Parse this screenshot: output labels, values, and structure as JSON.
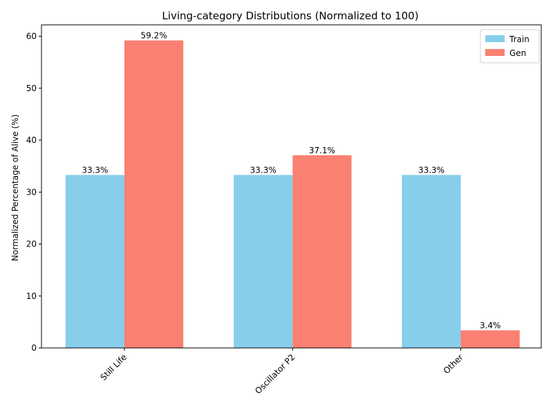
{
  "chart_data": {
    "type": "bar",
    "title": "Living-category Distributions (Normalized to 100)",
    "xlabel": "",
    "ylabel": "Normalized Percentage of Alive (%)",
    "categories": [
      "Still Life",
      "Oscillator P2",
      "Other"
    ],
    "series": [
      {
        "name": "Train",
        "color": "#87ceeb",
        "values": [
          33.3,
          33.3,
          33.3
        ],
        "labels": [
          "33.3%",
          "33.3%",
          "33.3%"
        ]
      },
      {
        "name": "Gen",
        "color": "#fa8072",
        "values": [
          59.2,
          37.1,
          3.4
        ],
        "labels": [
          "59.2%",
          "37.1%",
          "3.4%"
        ]
      }
    ],
    "ylim": [
      0,
      62.2
    ],
    "yticks": [
      0,
      10,
      20,
      30,
      40,
      50,
      60
    ],
    "grid": false,
    "legend": "top-right"
  }
}
